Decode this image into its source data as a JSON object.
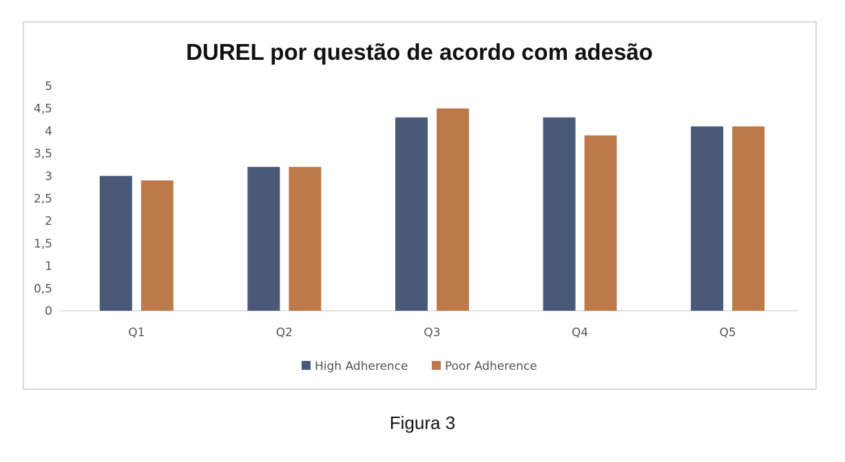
{
  "caption": "Figura 3",
  "chart_data": {
    "type": "bar",
    "title": "DUREL por questão de acordo com adesão",
    "xlabel": "",
    "ylabel": "",
    "categories": [
      "Q1",
      "Q2",
      "Q3",
      "Q4",
      "Q5"
    ],
    "ylim": [
      0,
      5
    ],
    "yticks": [
      0,
      0.5,
      1,
      1.5,
      2,
      2.5,
      3,
      3.5,
      4,
      4.5,
      5
    ],
    "ytick_labels": [
      "0",
      "0,5",
      "1",
      "1,5",
      "2",
      "2,5",
      "3",
      "3,5",
      "4",
      "4,5",
      "5"
    ],
    "grid": false,
    "legend_position": "bottom",
    "series": [
      {
        "name": "High Adherence",
        "color": "#485a78",
        "values": [
          3.0,
          3.2,
          4.3,
          4.3,
          4.1
        ]
      },
      {
        "name": "Poor Adherence",
        "color": "#bc7a4b",
        "values": [
          2.9,
          3.2,
          4.5,
          3.9,
          4.1
        ]
      }
    ]
  }
}
